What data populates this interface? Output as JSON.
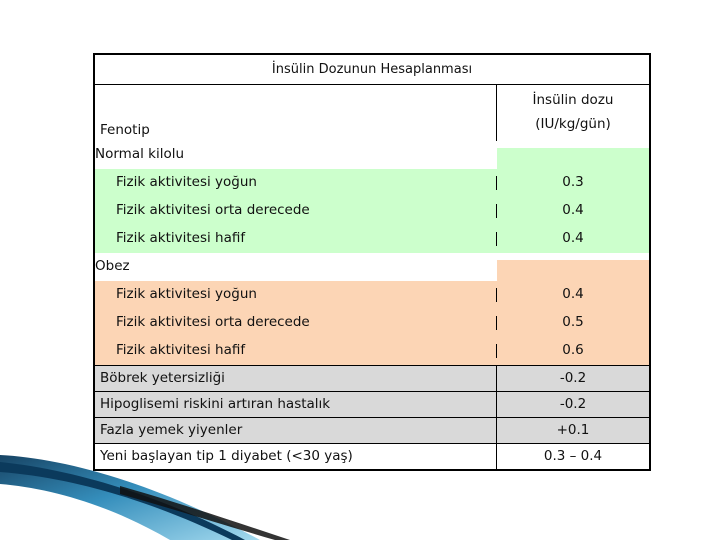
{
  "table": {
    "title": "İnsülin Dozunun Hesaplanması",
    "header": {
      "col1": "Fenotip",
      "col2_line1": "İnsülin dozu",
      "col2_line2": "(IU/kg/gün)"
    },
    "groups": [
      {
        "label": "Normal kilolu",
        "rows": [
          {
            "label": "Fizik aktivitesi yoğun",
            "value": "0.3"
          },
          {
            "label": "Fizik aktivitesi orta derecede",
            "value": "0.4"
          },
          {
            "label": "Fizik aktivitesi hafif",
            "value": "0.4"
          }
        ]
      },
      {
        "label": "Obez",
        "rows": [
          {
            "label": "Fizik aktivitesi yoğun",
            "value": "0.4"
          },
          {
            "label": "Fizik aktivitesi orta derecede",
            "value": "0.5"
          },
          {
            "label": "Fizik aktivitesi hafif",
            "value": "0.6"
          }
        ]
      }
    ],
    "adjustments": [
      {
        "label": "Böbrek yetersizliği",
        "value": "-0.2"
      },
      {
        "label": "Hipoglisemi riskini artıran hastalık",
        "value": "-0.2"
      },
      {
        "label": "Fazla yemek yiyenler",
        "value": "+0.1"
      },
      {
        "label": "Yeni başlayan tip 1 diyabet (<30 yaş)",
        "value": "0.3 – 0.4"
      }
    ]
  },
  "colors": {
    "normal_group": "#ccffcc",
    "obese_group": "#fcd5b5",
    "adjustment_rows": "#d9d9d9",
    "swoosh_dark": "#0b3a5c",
    "swoosh_light": "#5fb6d9"
  }
}
